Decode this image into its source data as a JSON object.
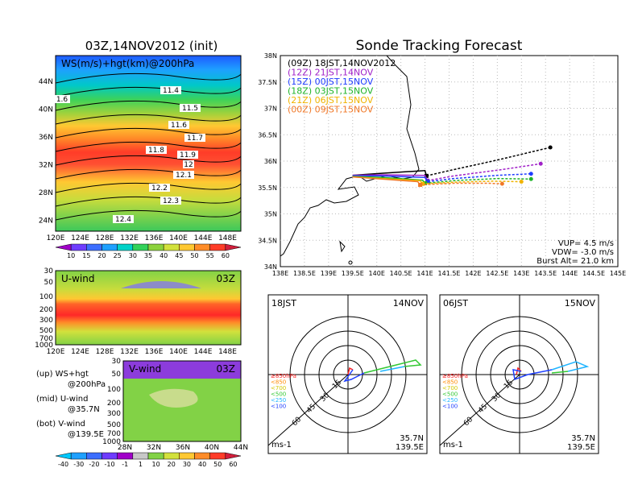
{
  "left_title": "03Z,14NOV2012 (init)",
  "right_title": "Sonde Tracking Forecast",
  "colors": {
    "ws_scale": [
      "#a000c8",
      "#6e3cff",
      "#3c6eff",
      "#1ea0ff",
      "#00d2c8",
      "#32d25a",
      "#8cd23c",
      "#d2e13c",
      "#ffc832",
      "#ff8c28",
      "#ff3c28",
      "#d21e3c"
    ],
    "wind_scale": [
      "#00c8ff",
      "#1ea0ff",
      "#3c6eff",
      "#6e3cff",
      "#a000c8",
      "#c8c8c8",
      "#82d246",
      "#d2e13c",
      "#ffc832",
      "#ff8c28",
      "#ff3c28",
      "#d21e3c"
    ]
  },
  "map_panel": {
    "label": "WS(m/s)+hgt(km)@200hPa",
    "lat_labels": [
      "44N",
      "40N",
      "36N",
      "32N",
      "28N",
      "24N"
    ],
    "lon_labels": [
      "120E",
      "124E",
      "128E",
      "132E",
      "136E",
      "140E",
      "144E",
      "148E"
    ],
    "contour_labels": [
      "11.4",
      "11.5",
      "11.6",
      "11.7",
      "11.8",
      "11.9",
      "12",
      "12.1",
      "12.2",
      "12.3",
      "12.4",
      "1.6"
    ],
    "colorbar_ticks": [
      "10",
      "15",
      "20",
      "25",
      "30",
      "35",
      "40",
      "45",
      "50",
      "55",
      "60"
    ]
  },
  "uwind_panel": {
    "label": "U-wind",
    "time": "03Z",
    "p_labels": [
      "30",
      "50",
      "100",
      "200",
      "300",
      "500",
      "700",
      "1000"
    ],
    "lon_labels": [
      "120E",
      "124E",
      "128E",
      "132E",
      "136E",
      "140E",
      "144E",
      "148E"
    ]
  },
  "vwind_panel": {
    "label": "V-wind",
    "time": "03Z",
    "p_labels": [
      "30",
      "50",
      "100",
      "200",
      "300",
      "500",
      "700",
      "1000"
    ],
    "lat_labels": [
      "28N",
      "32N",
      "36N",
      "40N",
      "44N"
    ]
  },
  "legend_notes": [
    {
      "a": "(up) WS+hgt",
      "b": "@200hPa"
    },
    {
      "a": "(mid) U-wind",
      "b": "@35.7N"
    },
    {
      "a": "(bot) V-wind",
      "b": "@139.5E"
    }
  ],
  "wind_colorbar_ticks": [
    "-40",
    "-30",
    "-20",
    "-10",
    "-1",
    "1",
    "10",
    "20",
    "30",
    "40",
    "50",
    "60"
  ],
  "chart_data": {
    "type": "line",
    "xlim": [
      138,
      145
    ],
    "ylim": [
      34,
      38
    ],
    "x_ticks": [
      "138E",
      "138.5E",
      "139E",
      "139.5E",
      "140E",
      "140.5E",
      "141E",
      "141.5E",
      "142E",
      "142.5E",
      "143E",
      "143.5E",
      "144E",
      "144.5E",
      "145E"
    ],
    "y_ticks": [
      "34N",
      "34.5N",
      "35N",
      "35.5N",
      "36N",
      "36.5N",
      "37N",
      "37.5N",
      "38N"
    ],
    "launch": {
      "lon": 139.5,
      "lat": 35.7
    },
    "series": [
      {
        "name": "(09Z) 18JST,14NOV2012",
        "color": "#000000",
        "x": [
          139.5,
          140.1,
          141.0,
          141.03,
          141.5,
          142.5,
          143.6
        ],
        "y": [
          35.73,
          35.77,
          35.82,
          35.72,
          35.82,
          36.02,
          36.26
        ]
      },
      {
        "name": "(12Z) 21JST,14NOV",
        "color": "#a020c8",
        "x": [
          139.5,
          140.1,
          141.0,
          141.05,
          141.6,
          142.6,
          143.4
        ],
        "y": [
          35.73,
          35.74,
          35.73,
          35.63,
          35.72,
          35.84,
          35.95
        ]
      },
      {
        "name": "(15Z) 00JST,15NOV",
        "color": "#1e3cff",
        "x": [
          139.5,
          140.1,
          141.0,
          141.06,
          141.6,
          142.5,
          143.2
        ],
        "y": [
          35.72,
          35.72,
          35.69,
          35.61,
          35.67,
          35.73,
          35.76
        ]
      },
      {
        "name": "(18Z) 03JST,15NOV",
        "color": "#1eb428",
        "x": [
          139.5,
          140.1,
          140.95,
          141.0,
          141.6,
          142.5,
          143.2
        ],
        "y": [
          35.71,
          35.69,
          35.64,
          35.58,
          35.63,
          35.67,
          35.66
        ]
      },
      {
        "name": "(21Z) 06JST,15NOV",
        "color": "#f0b400",
        "x": [
          139.5,
          140.1,
          140.9,
          140.95,
          141.6,
          142.4,
          143.0
        ],
        "y": [
          35.7,
          35.67,
          35.63,
          35.57,
          35.6,
          35.62,
          35.61
        ]
      },
      {
        "name": "(00Z) 09JST,15NOV",
        "color": "#f07828",
        "x": [
          139.5,
          140.1,
          140.85,
          140.9,
          141.6,
          142.3,
          142.6
        ],
        "y": [
          35.7,
          35.66,
          35.61,
          35.55,
          35.58,
          35.58,
          35.57
        ]
      }
    ],
    "info": [
      "VUP= 4.5 m/s",
      "VDW= -3.0 m/s",
      "Burst Alt= 21.0 km"
    ]
  },
  "hodo_panels": [
    {
      "time": "18JST",
      "date": "14NOV",
      "loc1": "35.7N",
      "loc2": "139.5E",
      "unit": "ms-1",
      "ring_labels": [
        "15",
        "30",
        "45",
        "60"
      ],
      "levels": [
        {
          "t": "≥850hPa",
          "c": "#ff2020"
        },
        {
          "t": "<850",
          "c": "#ff8c00"
        },
        {
          "t": "<700",
          "c": "#d2c800"
        },
        {
          "t": "<500",
          "c": "#32c832"
        },
        {
          "t": "<250",
          "c": "#20b4ff"
        },
        {
          "t": "<100",
          "c": "#2040ff"
        }
      ]
    },
    {
      "time": "06JST",
      "date": "15NOV",
      "loc1": "35.7N",
      "loc2": "139.5E",
      "unit": "ms-1",
      "ring_labels": [
        "15",
        "30",
        "45",
        "60"
      ],
      "levels": [
        {
          "t": "≥850hPa",
          "c": "#ff2020"
        },
        {
          "t": "<850",
          "c": "#ff8c00"
        },
        {
          "t": "<700",
          "c": "#d2c800"
        },
        {
          "t": "<500",
          "c": "#32c832"
        },
        {
          "t": "<250",
          "c": "#20b4ff"
        },
        {
          "t": "<100",
          "c": "#2040ff"
        }
      ]
    }
  ]
}
